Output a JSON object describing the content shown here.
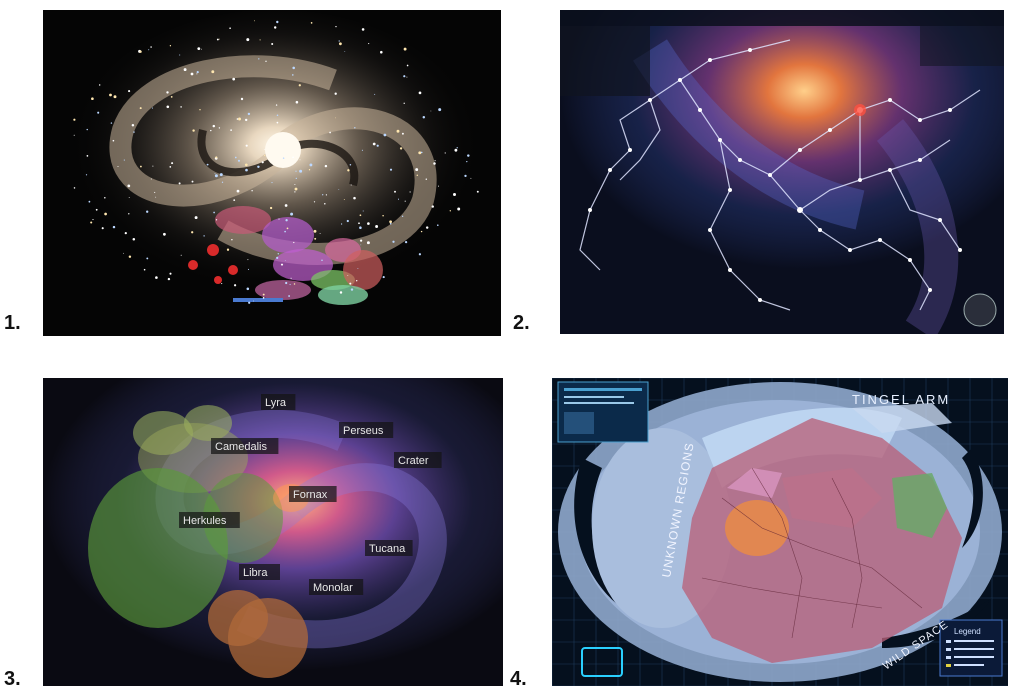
{
  "panels": [
    {
      "number_label": "1."
    },
    {
      "number_label": "2."
    },
    {
      "number_label": "3."
    },
    {
      "number_label": "4."
    }
  ],
  "panel3": {
    "regions": [
      "Lyra",
      "Perseus",
      "Crater",
      "Camedalis",
      "Fornax",
      "Herkules",
      "Tucana",
      "Libra",
      "Monolar"
    ]
  },
  "panel4": {
    "labels": {
      "arm": "TINGEL ARM",
      "unknown": "UNKNOWN REGIONS",
      "wild": "WILD SPACE",
      "legend_title": "Legend"
    }
  }
}
